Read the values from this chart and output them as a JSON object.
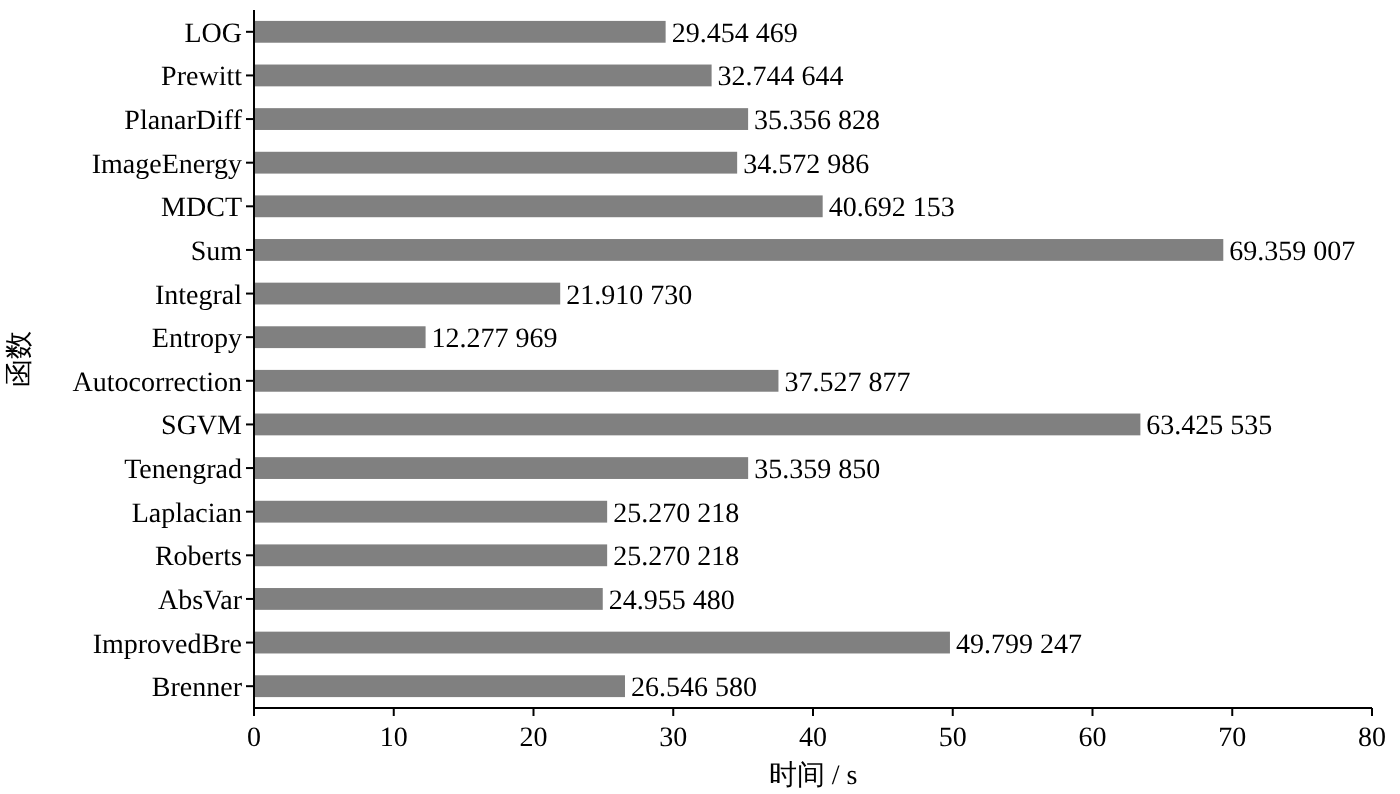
{
  "chart_data": {
    "type": "bar",
    "orientation": "horizontal",
    "xlabel": "时间 / s",
    "ylabel": "函数",
    "categories": [
      "LOG",
      "Prewitt",
      "PlanarDiff",
      "ImageEnergy",
      "MDCT",
      "Sum",
      "Integral",
      "Entropy",
      "Autocorrection",
      "SGVM",
      "Tenengrad",
      "Laplacian",
      "Roberts",
      "AbsVar",
      "ImprovedBre",
      "Brenner"
    ],
    "values": [
      29.454469,
      32.744644,
      35.356828,
      34.572986,
      40.692153,
      69.359007,
      21.91073,
      12.277969,
      37.527877,
      63.425535,
      35.35985,
      25.270218,
      25.270218,
      24.95548,
      49.799247,
      26.54658
    ],
    "value_labels": [
      "29.454 469",
      "32.744 644",
      "35.356 828",
      "34.572 986",
      "40.692 153",
      "69.359 007",
      "21.910 730",
      "12.277 969",
      "37.527 877",
      "63.425 535",
      "35.359 850",
      "25.270 218",
      "25.270 218",
      "24.955 480",
      "49.799 247",
      "26.546 580"
    ],
    "color": "#808080",
    "xlim": [
      0,
      80
    ],
    "xticks": [
      0,
      10,
      20,
      30,
      40,
      50,
      60,
      70,
      80
    ]
  }
}
